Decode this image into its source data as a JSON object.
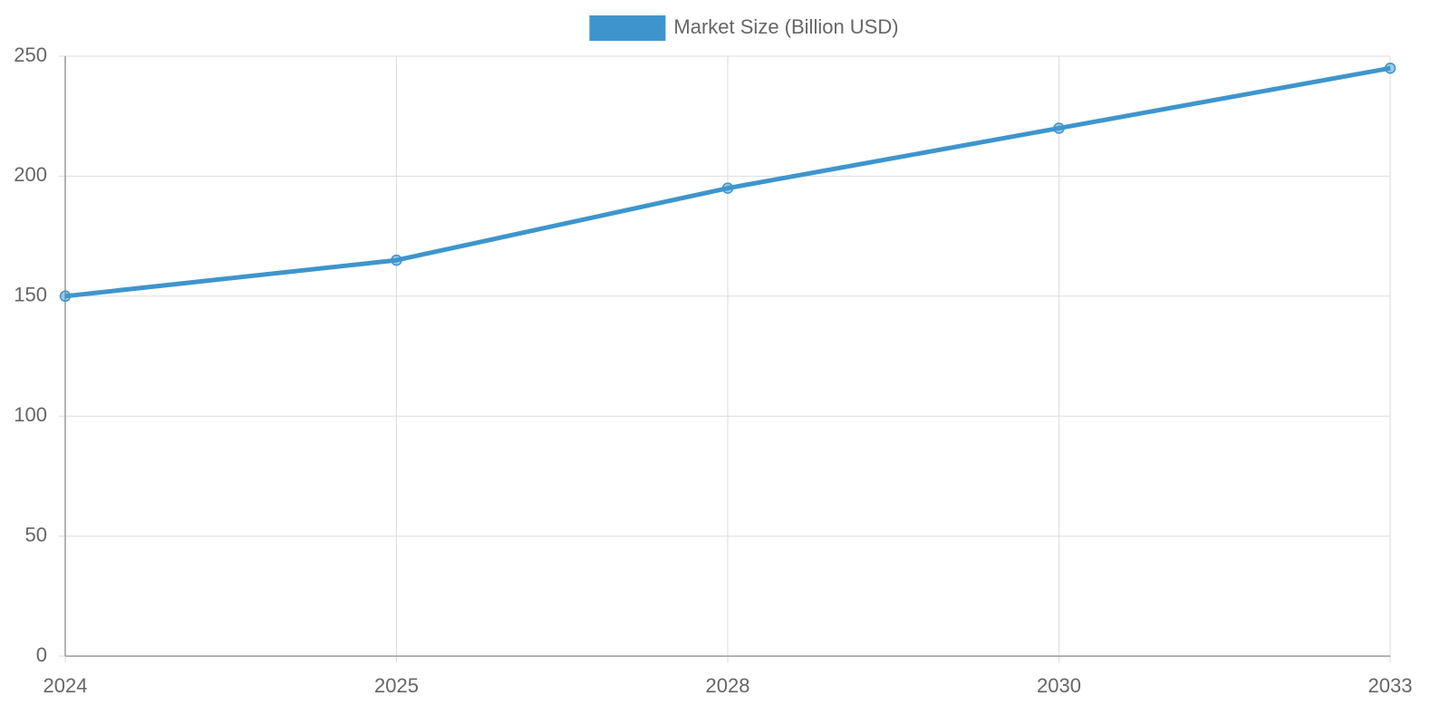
{
  "chart_data": {
    "type": "line",
    "categories": [
      "2024",
      "2025",
      "2028",
      "2030",
      "2033"
    ],
    "series": [
      {
        "name": "Market Size (Billion USD)",
        "color": "#3e95cd",
        "values": [
          150,
          165,
          195,
          220,
          245
        ]
      }
    ],
    "ylim": [
      0,
      250
    ],
    "yticks": [
      0,
      50,
      100,
      150,
      200,
      250
    ],
    "grid": true,
    "legend": "top"
  }
}
